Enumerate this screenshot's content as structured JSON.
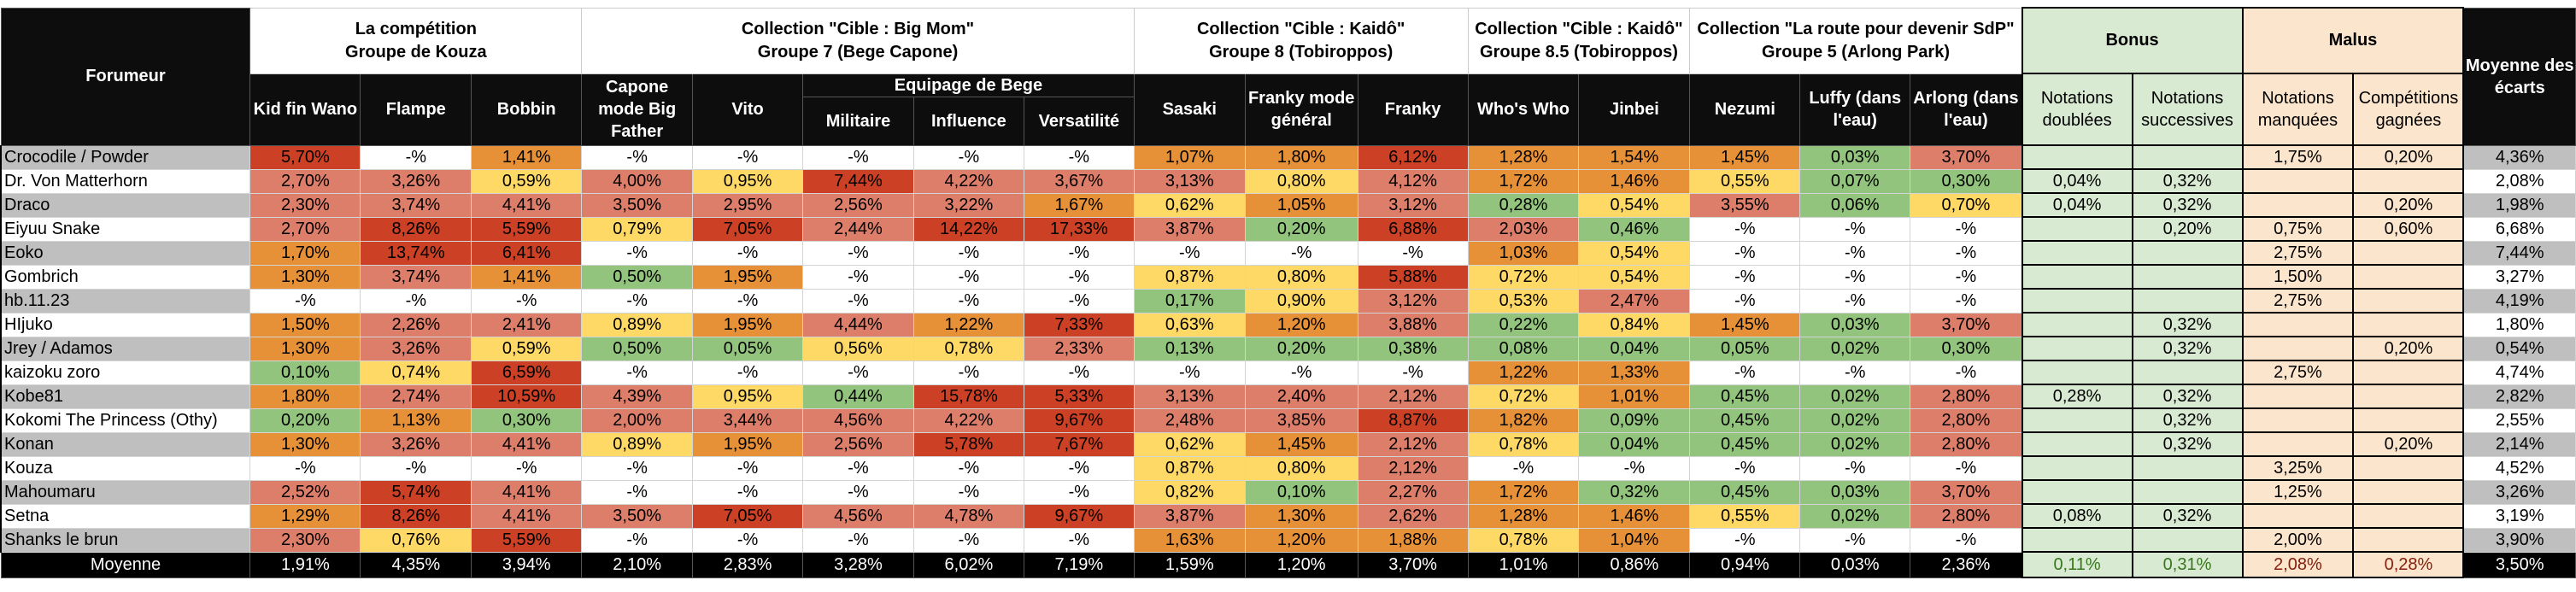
{
  "header": {
    "forumeur_label": "Forumeur",
    "groups": [
      {
        "title_line1": "La compétition",
        "title_line2": "Groupe de Kouza"
      },
      {
        "title_line1": "Collection \"Cible : Big Mom\"",
        "title_line2": "Groupe 7 (Bege Capone)"
      },
      {
        "title_line1": "Collection \"Cible : Kaidô\"",
        "title_line2": "Groupe 8 (Tobiroppos)"
      },
      {
        "title_line1": "Collection \"Cible : Kaidô\"",
        "title_line2": "Groupe 8.5 (Tobiroppos)"
      },
      {
        "title_line1": "Collection \"La route pour devenir SdP\"",
        "title_line2": "Groupe 5 (Arlong Park)"
      }
    ],
    "bonus_label": "Bonus",
    "malus_label": "Malus",
    "average_label": "Moyenne des écarts",
    "subgroup_label": "Equipage de Bege",
    "columns": [
      "Kid fin Wano",
      "Flampe",
      "Bobbin",
      "Capone mode Big Father",
      "Vito",
      "Militaire",
      "Influence",
      "Versatilité",
      "Sasaki",
      "Franky mode général",
      "Franky",
      "Who's Who",
      "Jinbei",
      "Nezumi",
      "Luffy (dans l'eau)",
      "Arlong (dans l'eau)"
    ],
    "bonus_columns": [
      "Notations doublées",
      "Notations successives"
    ],
    "malus_columns": [
      "Notations manquées",
      "Compétitions gagnées"
    ]
  },
  "legend_colors": {
    "red": "#cc4125",
    "salmon": "#dd7e6b",
    "orange": "#e69138",
    "yellow": "#ffd966",
    "green": "#93c47d",
    "none": "#ffffff",
    "bonus_bg": "#d9ead3",
    "malus_bg": "#fce5cd",
    "name_odd_bg": "#bfbfbf"
  },
  "rows": [
    {
      "name": "Crocodile / Powder",
      "values": [
        "5,70%",
        "-%",
        "1,41%",
        "-%",
        "-%",
        "-%",
        "-%",
        "-%",
        "1,07%",
        "1,80%",
        "6,12%",
        "1,28%",
        "1,54%",
        "1,45%",
        "0,03%",
        "3,70%"
      ],
      "colors": [
        "red",
        "none",
        "orange",
        "none",
        "none",
        "none",
        "none",
        "none",
        "orange",
        "orange",
        "red",
        "orange",
        "orange",
        "orange",
        "green",
        "salmon"
      ],
      "bonus": [
        "",
        ""
      ],
      "malus": [
        "1,75%",
        "0,20%"
      ],
      "average": "4,36%"
    },
    {
      "name": "Dr. Von Matterhorn",
      "values": [
        "2,70%",
        "3,26%",
        "0,59%",
        "4,00%",
        "0,95%",
        "7,44%",
        "4,22%",
        "3,67%",
        "3,13%",
        "0,80%",
        "4,12%",
        "1,72%",
        "1,46%",
        "0,55%",
        "0,07%",
        "0,30%"
      ],
      "colors": [
        "salmon",
        "salmon",
        "yellow",
        "salmon",
        "yellow",
        "red",
        "salmon",
        "salmon",
        "salmon",
        "yellow",
        "salmon",
        "orange",
        "orange",
        "yellow",
        "green",
        "green"
      ],
      "bonus": [
        "0,04%",
        "0,32%"
      ],
      "malus": [
        "",
        ""
      ],
      "average": "2,08%"
    },
    {
      "name": "Draco",
      "values": [
        "2,30%",
        "3,74%",
        "4,41%",
        "3,50%",
        "2,95%",
        "2,56%",
        "3,22%",
        "1,67%",
        "0,62%",
        "1,05%",
        "3,12%",
        "0,28%",
        "0,54%",
        "3,55%",
        "0,06%",
        "0,70%"
      ],
      "colors": [
        "salmon",
        "salmon",
        "salmon",
        "salmon",
        "salmon",
        "salmon",
        "salmon",
        "orange",
        "yellow",
        "orange",
        "salmon",
        "green",
        "yellow",
        "salmon",
        "green",
        "yellow"
      ],
      "bonus": [
        "0,04%",
        "0,32%"
      ],
      "malus": [
        "",
        "0,20%"
      ],
      "average": "1,98%"
    },
    {
      "name": "Eiyuu Snake",
      "values": [
        "2,70%",
        "8,26%",
        "5,59%",
        "0,79%",
        "7,05%",
        "2,44%",
        "14,22%",
        "17,33%",
        "3,87%",
        "0,20%",
        "6,88%",
        "2,03%",
        "0,46%",
        "-%",
        "-%",
        "-%"
      ],
      "colors": [
        "salmon",
        "red",
        "red",
        "yellow",
        "red",
        "salmon",
        "red",
        "red",
        "salmon",
        "green",
        "red",
        "salmon",
        "green",
        "none",
        "none",
        "none"
      ],
      "bonus": [
        "",
        "0,20%"
      ],
      "malus": [
        "0,75%",
        "0,60%"
      ],
      "average": "6,68%"
    },
    {
      "name": "Eoko",
      "values": [
        "1,70%",
        "13,74%",
        "6,41%",
        "-%",
        "-%",
        "-%",
        "-%",
        "-%",
        "-%",
        "-%",
        "-%",
        "1,03%",
        "0,54%",
        "-%",
        "-%",
        "-%"
      ],
      "colors": [
        "orange",
        "red",
        "red",
        "none",
        "none",
        "none",
        "none",
        "none",
        "none",
        "none",
        "none",
        "orange",
        "yellow",
        "none",
        "none",
        "none"
      ],
      "bonus": [
        "",
        ""
      ],
      "malus": [
        "2,75%",
        ""
      ],
      "average": "7,44%"
    },
    {
      "name": "Gombrich",
      "values": [
        "1,30%",
        "3,74%",
        "1,41%",
        "0,50%",
        "1,95%",
        "-%",
        "-%",
        "-%",
        "0,87%",
        "0,80%",
        "5,88%",
        "0,72%",
        "0,54%",
        "-%",
        "-%",
        "-%"
      ],
      "colors": [
        "orange",
        "salmon",
        "orange",
        "green",
        "orange",
        "none",
        "none",
        "none",
        "yellow",
        "yellow",
        "red",
        "yellow",
        "yellow",
        "none",
        "none",
        "none"
      ],
      "bonus": [
        "",
        ""
      ],
      "malus": [
        "1,50%",
        ""
      ],
      "average": "3,27%"
    },
    {
      "name": "hb.11.23",
      "values": [
        "-%",
        "-%",
        "-%",
        "-%",
        "-%",
        "-%",
        "-%",
        "-%",
        "0,17%",
        "0,90%",
        "3,12%",
        "0,53%",
        "2,47%",
        "-%",
        "-%",
        "-%"
      ],
      "colors": [
        "none",
        "none",
        "none",
        "none",
        "none",
        "none",
        "none",
        "none",
        "green",
        "yellow",
        "salmon",
        "yellow",
        "salmon",
        "none",
        "none",
        "none"
      ],
      "bonus": [
        "",
        ""
      ],
      "malus": [
        "2,75%",
        ""
      ],
      "average": "4,19%"
    },
    {
      "name": "HIjuko",
      "values": [
        "1,50%",
        "2,26%",
        "2,41%",
        "0,89%",
        "1,95%",
        "4,44%",
        "1,22%",
        "7,33%",
        "0,63%",
        "1,20%",
        "3,88%",
        "0,22%",
        "0,84%",
        "1,45%",
        "0,03%",
        "3,70%"
      ],
      "colors": [
        "orange",
        "salmon",
        "salmon",
        "yellow",
        "orange",
        "salmon",
        "orange",
        "red",
        "yellow",
        "orange",
        "salmon",
        "green",
        "yellow",
        "orange",
        "green",
        "salmon"
      ],
      "bonus": [
        "",
        "0,32%"
      ],
      "malus": [
        "",
        ""
      ],
      "average": "1,80%"
    },
    {
      "name": "Jrey / Adamos",
      "values": [
        "1,30%",
        "3,26%",
        "0,59%",
        "0,50%",
        "0,05%",
        "0,56%",
        "0,78%",
        "2,33%",
        "0,13%",
        "0,20%",
        "0,38%",
        "0,08%",
        "0,04%",
        "0,05%",
        "0,02%",
        "0,30%"
      ],
      "colors": [
        "orange",
        "salmon",
        "yellow",
        "green",
        "green",
        "yellow",
        "yellow",
        "salmon",
        "green",
        "green",
        "green",
        "green",
        "green",
        "green",
        "green",
        "green"
      ],
      "bonus": [
        "",
        "0,32%"
      ],
      "malus": [
        "",
        "0,20%"
      ],
      "average": "0,54%"
    },
    {
      "name": "kaizoku zoro",
      "values": [
        "0,10%",
        "0,74%",
        "6,59%",
        "-%",
        "-%",
        "-%",
        "-%",
        "-%",
        "-%",
        "-%",
        "-%",
        "1,22%",
        "1,33%",
        "-%",
        "-%",
        "-%"
      ],
      "colors": [
        "green",
        "yellow",
        "red",
        "none",
        "none",
        "none",
        "none",
        "none",
        "none",
        "none",
        "none",
        "orange",
        "orange",
        "none",
        "none",
        "none"
      ],
      "bonus": [
        "",
        ""
      ],
      "malus": [
        "2,75%",
        ""
      ],
      "average": "4,74%"
    },
    {
      "name": "Kobe81",
      "values": [
        "1,80%",
        "2,74%",
        "10,59%",
        "4,39%",
        "0,95%",
        "0,44%",
        "15,78%",
        "5,33%",
        "3,13%",
        "2,40%",
        "2,12%",
        "0,72%",
        "1,01%",
        "0,45%",
        "0,02%",
        "2,80%"
      ],
      "colors": [
        "orange",
        "salmon",
        "red",
        "salmon",
        "yellow",
        "green",
        "red",
        "red",
        "salmon",
        "salmon",
        "salmon",
        "yellow",
        "orange",
        "green",
        "green",
        "salmon"
      ],
      "bonus": [
        "0,28%",
        "0,32%"
      ],
      "malus": [
        "",
        ""
      ],
      "average": "2,82%"
    },
    {
      "name": "Kokomi The Princess (Othy)",
      "values": [
        "0,20%",
        "1,13%",
        "0,30%",
        "2,00%",
        "3,44%",
        "4,56%",
        "4,22%",
        "9,67%",
        "2,48%",
        "3,85%",
        "8,87%",
        "1,82%",
        "0,09%",
        "0,45%",
        "0,02%",
        "2,80%"
      ],
      "colors": [
        "green",
        "orange",
        "green",
        "salmon",
        "salmon",
        "salmon",
        "salmon",
        "red",
        "salmon",
        "salmon",
        "red",
        "orange",
        "green",
        "green",
        "green",
        "salmon"
      ],
      "bonus": [
        "",
        "0,32%"
      ],
      "malus": [
        "",
        ""
      ],
      "average": "2,55%"
    },
    {
      "name": "Konan",
      "values": [
        "1,30%",
        "3,26%",
        "4,41%",
        "0,89%",
        "1,95%",
        "2,56%",
        "5,78%",
        "7,67%",
        "0,62%",
        "1,45%",
        "2,12%",
        "0,78%",
        "0,04%",
        "0,45%",
        "0,02%",
        "2,80%"
      ],
      "colors": [
        "orange",
        "salmon",
        "salmon",
        "yellow",
        "orange",
        "salmon",
        "red",
        "red",
        "yellow",
        "orange",
        "salmon",
        "yellow",
        "green",
        "green",
        "green",
        "salmon"
      ],
      "bonus": [
        "",
        "0,32%"
      ],
      "malus": [
        "",
        "0,20%"
      ],
      "average": "2,14%"
    },
    {
      "name": "Kouza",
      "values": [
        "-%",
        "-%",
        "-%",
        "-%",
        "-%",
        "-%",
        "-%",
        "-%",
        "0,87%",
        "0,80%",
        "2,12%",
        "-%",
        "-%",
        "-%",
        "-%",
        "-%"
      ],
      "colors": [
        "none",
        "none",
        "none",
        "none",
        "none",
        "none",
        "none",
        "none",
        "yellow",
        "yellow",
        "salmon",
        "none",
        "none",
        "none",
        "none",
        "none"
      ],
      "bonus": [
        "",
        ""
      ],
      "malus": [
        "3,25%",
        ""
      ],
      "average": "4,52%"
    },
    {
      "name": "Mahoumaru",
      "values": [
        "2,52%",
        "5,74%",
        "4,41%",
        "-%",
        "-%",
        "-%",
        "-%",
        "-%",
        "0,82%",
        "0,10%",
        "2,27%",
        "1,72%",
        "0,32%",
        "0,45%",
        "0,03%",
        "3,70%"
      ],
      "colors": [
        "salmon",
        "red",
        "salmon",
        "none",
        "none",
        "none",
        "none",
        "none",
        "yellow",
        "green",
        "salmon",
        "orange",
        "green",
        "green",
        "green",
        "salmon"
      ],
      "bonus": [
        "",
        ""
      ],
      "malus": [
        "1,25%",
        ""
      ],
      "average": "3,26%"
    },
    {
      "name": "Setna",
      "values": [
        "1,29%",
        "8,26%",
        "4,41%",
        "3,50%",
        "7,05%",
        "4,56%",
        "4,78%",
        "9,67%",
        "3,87%",
        "1,30%",
        "2,62%",
        "1,28%",
        "1,46%",
        "0,55%",
        "0,02%",
        "2,80%"
      ],
      "colors": [
        "orange",
        "red",
        "salmon",
        "salmon",
        "red",
        "salmon",
        "salmon",
        "red",
        "salmon",
        "orange",
        "salmon",
        "orange",
        "orange",
        "yellow",
        "green",
        "salmon"
      ],
      "bonus": [
        "0,08%",
        "0,32%"
      ],
      "malus": [
        "",
        ""
      ],
      "average": "3,19%"
    },
    {
      "name": "Shanks le brun",
      "values": [
        "2,30%",
        "0,76%",
        "5,59%",
        "-%",
        "-%",
        "-%",
        "-%",
        "-%",
        "1,63%",
        "1,20%",
        "1,88%",
        "0,78%",
        "1,04%",
        "-%",
        "-%",
        "-%"
      ],
      "colors": [
        "salmon",
        "yellow",
        "red",
        "none",
        "none",
        "none",
        "none",
        "none",
        "orange",
        "orange",
        "orange",
        "yellow",
        "orange",
        "none",
        "none",
        "none"
      ],
      "bonus": [
        "",
        ""
      ],
      "malus": [
        "2,00%",
        ""
      ],
      "average": "3,90%"
    }
  ],
  "totals": {
    "label": "Moyenne",
    "values": [
      "1,91%",
      "4,35%",
      "3,94%",
      "2,10%",
      "2,83%",
      "3,28%",
      "6,02%",
      "7,19%",
      "1,59%",
      "1,20%",
      "3,70%",
      "1,01%",
      "0,86%",
      "0,94%",
      "0,03%",
      "2,36%"
    ],
    "bonus": [
      "0,11%",
      "0,31%"
    ],
    "malus": [
      "2,08%",
      "0,28%"
    ],
    "average": "3,50%"
  }
}
